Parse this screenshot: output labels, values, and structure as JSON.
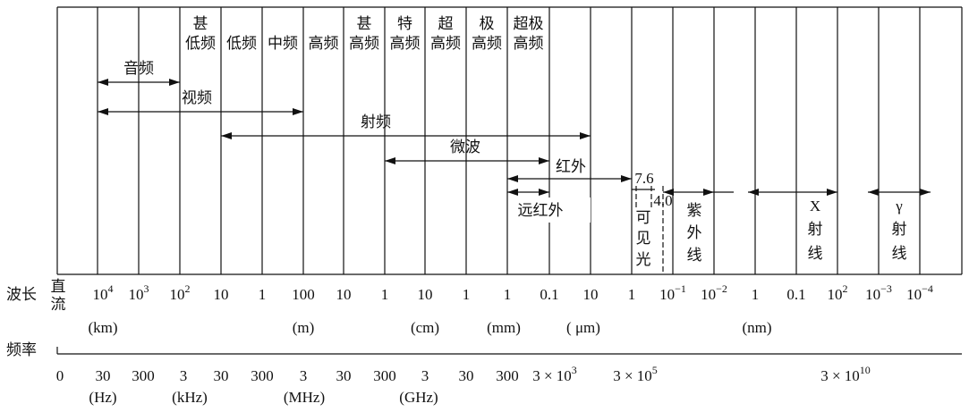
{
  "bands": [
    [
      "甚",
      "低频"
    ],
    [
      "低频"
    ],
    [
      "中频"
    ],
    [
      "高频"
    ],
    [
      "甚",
      "高频"
    ],
    [
      "特",
      "高频"
    ],
    [
      "超",
      "高频"
    ],
    [
      "极",
      "高频"
    ],
    [
      "超极",
      "高频"
    ]
  ],
  "arrows": {
    "audio": "音频",
    "video": "视频",
    "radio": "射频",
    "microwave": "微波",
    "infrared": "红外",
    "far_infrared": "远红外"
  },
  "marks": {
    "ir_edge": "7.6",
    "uv_edge": "4.0"
  },
  "regions": {
    "visible": [
      "可",
      "见",
      "光"
    ],
    "ultraviolet": [
      "紫",
      "外",
      "线"
    ],
    "xray": [
      "X",
      "射",
      "线"
    ],
    "gamma": [
      "γ",
      "射",
      "线"
    ]
  },
  "wavelength": {
    "label": "波长",
    "dc": [
      "直",
      "流"
    ],
    "ticks": [
      [
        "10",
        "4"
      ],
      [
        "10",
        "3"
      ],
      [
        "10",
        "2"
      ],
      [
        "10"
      ],
      [
        "1"
      ],
      [
        "100"
      ],
      [
        "10"
      ],
      [
        "1"
      ],
      [
        "10"
      ],
      [
        "1"
      ],
      [
        "1"
      ],
      [
        "0.1"
      ],
      [
        "10"
      ],
      [
        "1"
      ],
      [
        "10",
        "−1"
      ],
      [
        "10",
        "−2"
      ],
      [
        "1"
      ],
      [
        "0.1"
      ],
      [
        "10",
        "2"
      ],
      [
        "10",
        "−3"
      ],
      [
        "10",
        "−4"
      ]
    ],
    "units": [
      "(km)",
      "(m)",
      "(cm)",
      "(mm)",
      "( μm)",
      "(nm)"
    ]
  },
  "frequency": {
    "label": "频率",
    "ticks": [
      [
        "0"
      ],
      [
        "30"
      ],
      [
        "300"
      ],
      [
        "3"
      ],
      [
        "30"
      ],
      [
        "300"
      ],
      [
        "3"
      ],
      [
        "30"
      ],
      [
        "300"
      ],
      [
        "3"
      ],
      [
        "30"
      ],
      [
        "300"
      ],
      [
        "3 × 10",
        "3"
      ],
      [
        "3 × 10",
        "5"
      ],
      [
        "3 × 10",
        "10"
      ]
    ],
    "units": [
      "(Hz)",
      "(kHz)",
      "(MHz)",
      "(GHz)"
    ]
  }
}
